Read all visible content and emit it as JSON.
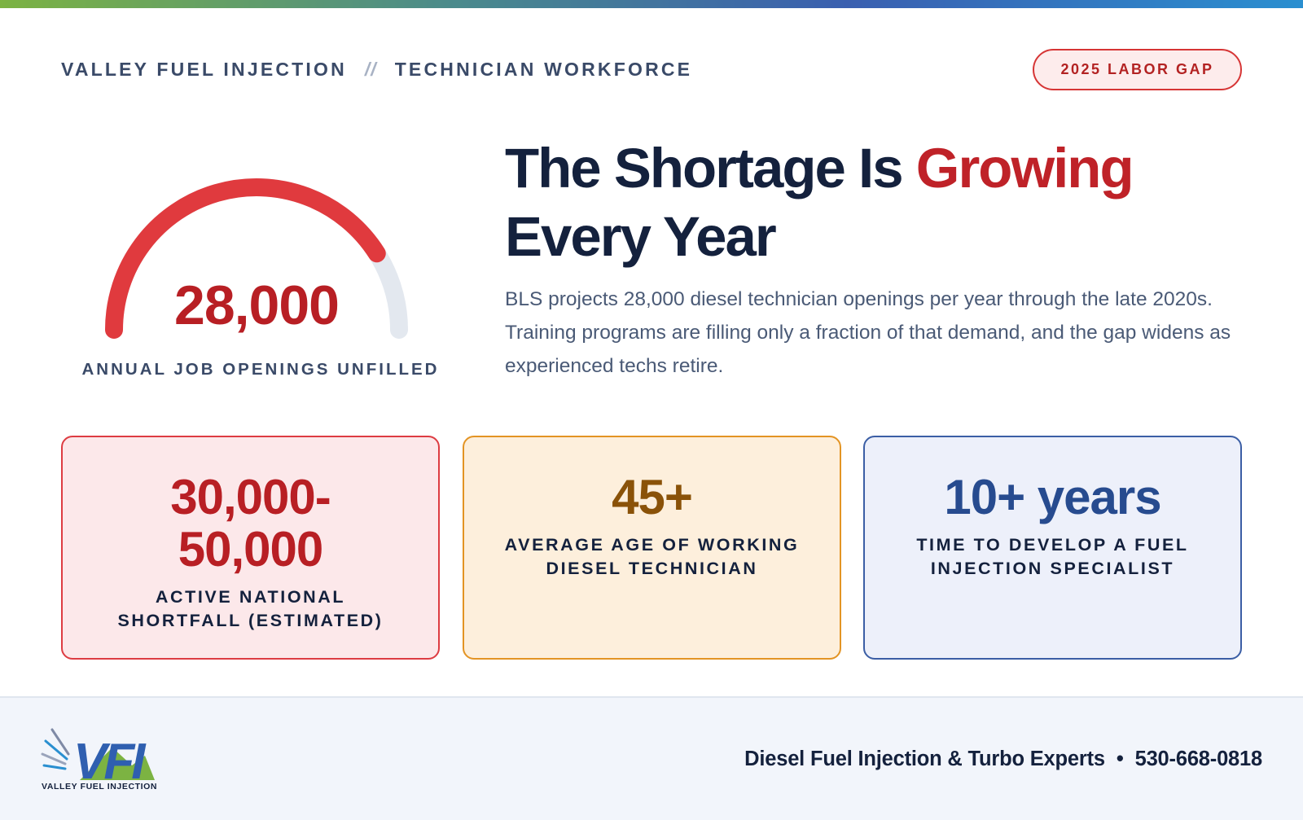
{
  "header": {
    "company": "VALLEY FUEL INJECTION",
    "separator": "//",
    "section": "TECHNICIAN WORKFORCE",
    "badge": "2025 LABOR GAP"
  },
  "gauge": {
    "value": "28,000",
    "label": "ANNUAL JOB OPENINGS UNFILLED",
    "fill_fraction": 0.82,
    "fill_color": "#e03a3e",
    "track_color": "#e3e8ef"
  },
  "headline": {
    "part1": "The Shortage Is ",
    "highlight": "Growing",
    "part2": "Every Year"
  },
  "body": "BLS projects 28,000 diesel technician openings per year through the late 2020s. Training programs are filling only a fraction of that demand, and the gap widens as experienced techs retire.",
  "stats": [
    {
      "value_line1": "30,000-",
      "value_line2": "50,000",
      "label": "ACTIVE NATIONAL SHORTFALL (ESTIMATED)",
      "color": "#b81f24"
    },
    {
      "value": "45+",
      "label": "AVERAGE AGE OF WORKING DIESEL TECHNICIAN",
      "color": "#8a5208"
    },
    {
      "value": "10+ years",
      "label": "TIME TO DEVELOP A FUEL INJECTION SPECIALIST",
      "color": "#274b8f"
    }
  ],
  "footer": {
    "logo_text": "VFI",
    "logo_caption": "VALLEY FUEL INJECTION",
    "tagline": "Diesel Fuel Injection & Turbo Experts",
    "bullet": "•",
    "phone": "530-668-0818"
  },
  "colors": {
    "accent_red": "#bf2228",
    "navy": "#14213d",
    "slate": "#3a4a68"
  }
}
